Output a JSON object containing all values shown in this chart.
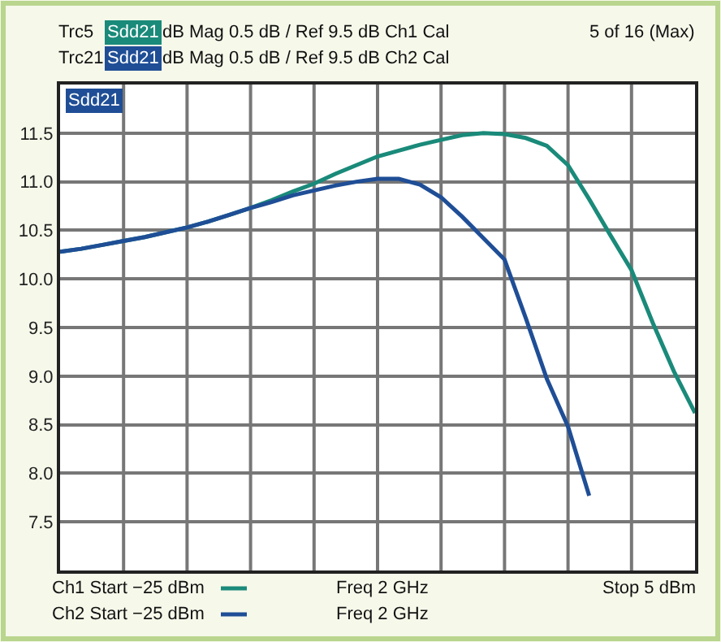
{
  "chart_data": {
    "type": "line",
    "categories": [
      null,
      null,
      null,
      null,
      null,
      null,
      null,
      null,
      null,
      null,
      null,
      null,
      null,
      null,
      null,
      null,
      null,
      null,
      null,
      null,
      null,
      null,
      null,
      null,
      null,
      null,
      null,
      null,
      null,
      null,
      null
    ],
    "ylim": [
      7.0,
      12.0
    ],
    "yticks": [
      {
        "value": 7.0,
        "label": null
      },
      7.5,
      {
        "value": 8,
        "label": "8.0"
      },
      8.5,
      {
        "value": 9,
        "label": "9.0"
      },
      9.5,
      {
        "value": 10,
        "label": "10.0"
      },
      10.5,
      {
        "value": 11,
        "label": "11.0"
      },
      11.5,
      {
        "value": 12.0,
        "label": null
      }
    ],
    "legend": "bottom left",
    "tick_labels": "y",
    "grid": true,
    "marker": "none",
    "line_style": "solid",
    "series": [
      {
        "name": "Ch1 Start −25 dBm",
        "color": "#1a8a7a",
        "values": [
          10.28,
          10.31,
          10.35,
          10.39,
          10.43,
          10.48,
          10.53,
          10.59,
          10.66,
          10.73,
          10.81,
          10.9,
          10.98,
          11.08,
          11.17,
          11.26,
          11.32,
          11.38,
          11.43,
          11.48,
          11.5,
          11.49,
          11.45,
          11.37,
          11.17,
          10.82,
          10.45,
          10.09,
          9.55,
          9.05,
          8.62
        ]
      },
      {
        "name": "Ch2 Start −25 dBm",
        "color": "#1f4e96",
        "values": [
          10.28,
          10.31,
          10.35,
          10.39,
          10.43,
          10.48,
          10.53,
          10.59,
          10.66,
          10.73,
          10.79,
          10.86,
          10.91,
          10.96,
          11.0,
          11.03,
          11.03,
          10.97,
          10.84,
          10.64,
          10.42,
          10.2,
          9.6,
          8.97,
          8.48,
          7.77,
          null,
          null,
          null,
          null,
          null
        ]
      }
    ],
    "annotations": [
      "Trc5",
      "Sdd21",
      "dB Mag 0.5 dB / Ref 9.5 dB Ch1 Cal",
      "Trc21",
      "Sdd21",
      "dB Mag 0.5 dB / Ref 9.5 dB Ch2 Cal",
      "5 of 16 (Max)",
      "Sdd21",
      "Freq 2 GHz",
      "Freq 2 GHz",
      "Stop 5 dBm"
    ]
  }
}
